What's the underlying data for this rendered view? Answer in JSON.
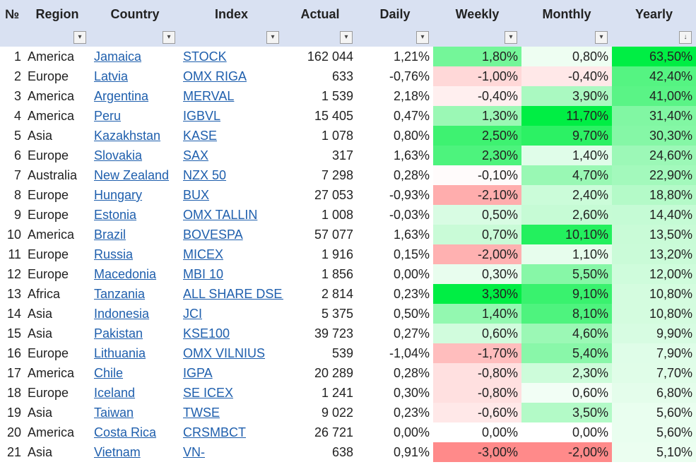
{
  "columns": [
    {
      "key": "no",
      "label": "№",
      "filter": false
    },
    {
      "key": "region",
      "label": "Region",
      "filter": true,
      "filter_icon": "dropdown-arrow"
    },
    {
      "key": "country",
      "label": "Country",
      "filter": true,
      "filter_icon": "dropdown-arrow"
    },
    {
      "key": "index",
      "label": "Index",
      "filter": true,
      "filter_icon": "dropdown-arrow"
    },
    {
      "key": "actual",
      "label": "Actual",
      "filter": true,
      "filter_icon": "dropdown-arrow"
    },
    {
      "key": "daily",
      "label": "Daily",
      "filter": true,
      "filter_icon": "dropdown-arrow"
    },
    {
      "key": "weekly",
      "label": "Weekly",
      "filter": true,
      "filter_icon": "dropdown-arrow"
    },
    {
      "key": "monthly",
      "label": "Monthly",
      "filter": true,
      "filter_icon": "dropdown-arrow"
    },
    {
      "key": "yearly",
      "label": "Yearly",
      "filter": true,
      "filter_icon": "sort-descending-arrow"
    }
  ],
  "colors": {
    "header_bg": "#d9e1f2",
    "link": "#1f5fad",
    "positive": "#00ee44",
    "negative": "#ff8a8a"
  },
  "rows": [
    {
      "no": "1",
      "region": "America",
      "country": "Jamaica",
      "index": "STOCK",
      "actual": "162 044",
      "daily": "1,21%",
      "weekly": "1,80%",
      "monthly": "0,80%",
      "yearly": "63,50%"
    },
    {
      "no": "2",
      "region": "Europe",
      "country": "Latvia",
      "index": "OMX RIGA",
      "actual": "633",
      "daily": "-0,76%",
      "weekly": "-1,00%",
      "monthly": "-0,40%",
      "yearly": "42,40%"
    },
    {
      "no": "3",
      "region": "America",
      "country": "Argentina",
      "index": "MERVAL",
      "actual": "1 539",
      "daily": "2,18%",
      "weekly": "-0,40%",
      "monthly": "3,90%",
      "yearly": "41,00%"
    },
    {
      "no": "4",
      "region": "America",
      "country": "Peru",
      "index": "IGBVL",
      "actual": "15 405",
      "daily": "0,47%",
      "weekly": "1,30%",
      "monthly": "11,70%",
      "yearly": "31,40%"
    },
    {
      "no": "5",
      "region": "Asia",
      "country": "Kazakhstan",
      "index": "KASE",
      "actual": "1 078",
      "daily": "0,80%",
      "weekly": "2,50%",
      "monthly": "9,70%",
      "yearly": "30,30%"
    },
    {
      "no": "6",
      "region": "Europe",
      "country": "Slovakia",
      "index": "SAX",
      "actual": "317",
      "daily": "1,63%",
      "weekly": "2,30%",
      "monthly": "1,40%",
      "yearly": "24,60%"
    },
    {
      "no": "7",
      "region": "Australia",
      "country": "New Zealand",
      "index": "NZX 50",
      "actual": "7 298",
      "daily": "0,28%",
      "weekly": "-0,10%",
      "monthly": "4,70%",
      "yearly": "22,90%"
    },
    {
      "no": "8",
      "region": "Europe",
      "country": "Hungary",
      "index": "BUX",
      "actual": "27 053",
      "daily": "-0,93%",
      "weekly": "-2,10%",
      "monthly": "2,40%",
      "yearly": "18,80%"
    },
    {
      "no": "9",
      "region": "Europe",
      "country": "Estonia",
      "index": "OMX TALLIN",
      "actual": "1 008",
      "daily": "-0,03%",
      "weekly": "0,50%",
      "monthly": "2,60%",
      "yearly": "14,40%"
    },
    {
      "no": "10",
      "region": "America",
      "country": "Brazil",
      "index": "BOVESPA",
      "actual": "57 077",
      "daily": "1,63%",
      "weekly": "0,70%",
      "monthly": "10,10%",
      "yearly": "13,50%"
    },
    {
      "no": "11",
      "region": "Europe",
      "country": "Russia",
      "index": "MICEX",
      "actual": "1 916",
      "daily": "0,15%",
      "weekly": "-2,00%",
      "monthly": "1,10%",
      "yearly": "13,20%"
    },
    {
      "no": "12",
      "region": "Europe",
      "country": "Macedonia",
      "index": "MBI 10",
      "actual": "1 856",
      "daily": "0,00%",
      "weekly": "0,30%",
      "monthly": "5,50%",
      "yearly": "12,00%"
    },
    {
      "no": "13",
      "region": "Africa",
      "country": "Tanzania",
      "index": "ALL SHARE DSEI",
      "actual": "2 814",
      "daily": "0,23%",
      "weekly": "3,30%",
      "monthly": "9,10%",
      "yearly": "10,80%"
    },
    {
      "no": "14",
      "region": "Asia",
      "country": "Indonesia",
      "index": "JCI",
      "actual": "5 375",
      "daily": "0,50%",
      "weekly": "1,40%",
      "monthly": "8,10%",
      "yearly": "10,80%"
    },
    {
      "no": "15",
      "region": "Asia",
      "country": "Pakistan",
      "index": "KSE100",
      "actual": "39 723",
      "daily": "0,27%",
      "weekly": "0,60%",
      "monthly": "4,60%",
      "yearly": "9,90%"
    },
    {
      "no": "16",
      "region": "Europe",
      "country": "Lithuania",
      "index": "OMX VILNIUS",
      "actual": "539",
      "daily": "-1,04%",
      "weekly": "-1,70%",
      "monthly": "5,40%",
      "yearly": "7,90%"
    },
    {
      "no": "17",
      "region": "America",
      "country": "Chile",
      "index": "IGPA",
      "actual": "20 289",
      "daily": "0,28%",
      "weekly": "-0,80%",
      "monthly": "2,30%",
      "yearly": "7,70%"
    },
    {
      "no": "18",
      "region": "Europe",
      "country": "Iceland",
      "index": "SE ICEX",
      "actual": "1 241",
      "daily": "0,30%",
      "weekly": "-0,80%",
      "monthly": "0,60%",
      "yearly": "6,80%"
    },
    {
      "no": "19",
      "region": "Asia",
      "country": "Taiwan",
      "index": "TWSE",
      "actual": "9 022",
      "daily": "0,23%",
      "weekly": "-0,60%",
      "monthly": "3,50%",
      "yearly": "5,60%"
    },
    {
      "no": "20",
      "region": "America",
      "country": "Costa Rica",
      "index": "CRSMBCT",
      "actual": "26 721",
      "daily": "0,00%",
      "weekly": "0,00%",
      "monthly": "0,00%",
      "yearly": "5,60%"
    },
    {
      "no": "21",
      "region": "Asia",
      "country": "Vietnam",
      "index": "VN-",
      "actual": "638",
      "daily": "0,91%",
      "weekly": "-3,00%",
      "monthly": "-2,00%",
      "yearly": "5,10%"
    }
  ]
}
